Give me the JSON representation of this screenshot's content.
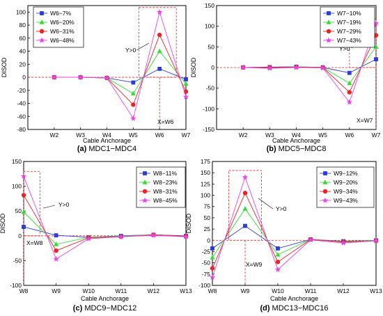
{
  "figure": {
    "colors": {
      "s1": "#2b3cd8",
      "s2": "#33dd33",
      "s3": "#ee2222",
      "s4": "#f040f0",
      "ref": "#ee2222",
      "axis": "#000000"
    }
  },
  "chart_data": [
    {
      "type": "line",
      "caption_tag": "(a)",
      "caption_text": "MDC1−MDC4",
      "xlabel": "Cable Anchorage",
      "ylabel": "DISOD",
      "categories": [
        "W2",
        "W3",
        "W4",
        "W5",
        "W6",
        "W7"
      ],
      "ylim": [
        -80,
        110
      ],
      "yticks": [
        -80,
        -60,
        -40,
        -20,
        0,
        20,
        40,
        60,
        80,
        100
      ],
      "series": [
        {
          "name": "W6−7%",
          "marker": "square",
          "values": [
            0,
            0,
            -1,
            -8,
            13,
            -3
          ]
        },
        {
          "name": "W6−20%",
          "marker": "triangle",
          "values": [
            0,
            0,
            -1,
            -25,
            40,
            -10
          ]
        },
        {
          "name": "W6−31%",
          "marker": "circle",
          "values": [
            0,
            0,
            -1,
            -42,
            65,
            -22
          ]
        },
        {
          "name": "W6−48%",
          "marker": "star",
          "values": [
            0,
            0,
            -1,
            -63,
            100,
            -30
          ]
        }
      ],
      "annotations": [
        {
          "text": "Y>0"
        },
        {
          "text": "X=W6"
        }
      ],
      "highlight_box": {
        "x_from": "W5",
        "x_to": "W6",
        "y_from": 0,
        "y_to": 107
      },
      "ref_x": "W6",
      "legend": "top-left"
    },
    {
      "type": "line",
      "caption_tag": "(b)",
      "caption_text": "MDC5−MDC8",
      "xlabel": "Cable Anchorage",
      "ylabel": "DISOD",
      "categories": [
        "W2",
        "W3",
        "W4",
        "W5",
        "W6",
        "W7"
      ],
      "ylim": [
        -150,
        150
      ],
      "yticks": [
        -150,
        -100,
        -50,
        0,
        50,
        100,
        150
      ],
      "series": [
        {
          "name": "W7−10%",
          "marker": "square",
          "values": [
            0,
            1,
            2,
            0,
            -13,
            20
          ]
        },
        {
          "name": "W7−19%",
          "marker": "triangle",
          "values": [
            0,
            -1,
            2,
            0,
            -38,
            50
          ]
        },
        {
          "name": "W7−29%",
          "marker": "circle",
          "values": [
            0,
            0,
            1,
            0,
            -60,
            78
          ]
        },
        {
          "name": "W7−43%",
          "marker": "star",
          "values": [
            0,
            -2,
            0,
            -1,
            -84,
            107
          ]
        }
      ],
      "annotations": [
        {
          "text": "Y>0"
        },
        {
          "text": "X=W7"
        }
      ],
      "highlight_box": {
        "x_from": "W6",
        "x_to": "W7",
        "y_from": 0,
        "y_to": 118
      },
      "ref_x": "W7",
      "legend": "top-right"
    },
    {
      "type": "line",
      "caption_tag": "(c)",
      "caption_text": "MDC9−MDC12",
      "xlabel": "Cable Anchorage",
      "ylabel": "DISOD",
      "categories": [
        "W8",
        "W9",
        "W10",
        "W11",
        "W12",
        "W13"
      ],
      "ylim": [
        -100,
        150
      ],
      "yticks": [
        -100,
        -50,
        0,
        50,
        100,
        150
      ],
      "series": [
        {
          "name": "W8−11%",
          "marker": "square",
          "values": [
            18,
            1,
            -3,
            0,
            2,
            0
          ]
        },
        {
          "name": "W8−23%",
          "marker": "triangle",
          "values": [
            48,
            -17,
            -3,
            -1,
            2,
            -1
          ]
        },
        {
          "name": "W8−31%",
          "marker": "circle",
          "values": [
            82,
            -30,
            -4,
            -2,
            2,
            -1
          ]
        },
        {
          "name": "W8−45%",
          "marker": "star",
          "values": [
            120,
            -47,
            -6,
            -2,
            1,
            -2
          ]
        }
      ],
      "annotations": [
        {
          "text": "Y>0"
        },
        {
          "text": "X=W8"
        }
      ],
      "highlight_box": {
        "x_from": "W8",
        "x_to": "W8.5",
        "y_from": 0,
        "y_to": 130
      },
      "ref_x": "W8",
      "legend": "top-right"
    },
    {
      "type": "line",
      "caption_tag": "(d)",
      "caption_text": "MDC13−MDC16",
      "xlabel": "Cable Anchorage",
      "ylabel": "DISOD",
      "categories": [
        "W8",
        "W9",
        "W10",
        "W11",
        "W12",
        "W13"
      ],
      "ylim": [
        -100,
        175
      ],
      "yticks": [
        -100,
        -75,
        -50,
        -25,
        0,
        25,
        50,
        75,
        100,
        125,
        150,
        175
      ],
      "series": [
        {
          "name": "W9−12%",
          "marker": "square",
          "values": [
            -18,
            32,
            -18,
            2,
            -2,
            0
          ]
        },
        {
          "name": "W9−20%",
          "marker": "triangle",
          "values": [
            -38,
            70,
            -32,
            2,
            -3,
            0
          ]
        },
        {
          "name": "W9−34%",
          "marker": "circle",
          "values": [
            -62,
            105,
            -48,
            2,
            -4,
            -1
          ]
        },
        {
          "name": "W9−43%",
          "marker": "star",
          "values": [
            -82,
            140,
            -65,
            1,
            -6,
            -1
          ]
        }
      ],
      "annotations": [
        {
          "text": "Y>0"
        },
        {
          "text": "X=W9"
        }
      ],
      "highlight_box": {
        "x_from": "W8.5",
        "x_to": "W9.5",
        "y_from": 0,
        "y_to": 155
      },
      "ref_x": "W9",
      "legend": "top-right"
    }
  ]
}
